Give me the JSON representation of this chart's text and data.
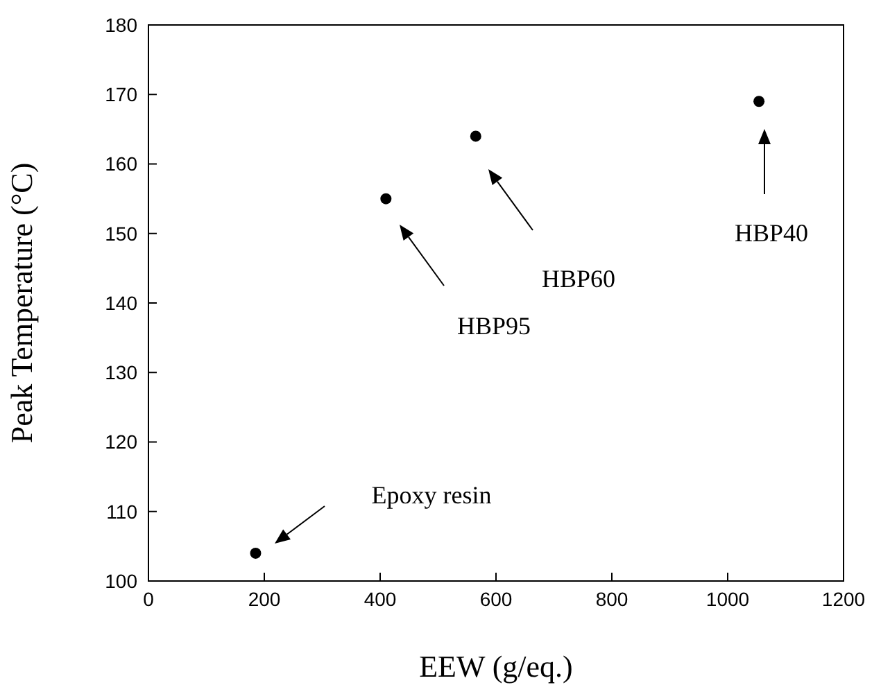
{
  "chart_data": {
    "type": "scatter",
    "xlabel": "EEW (g/eq.)",
    "ylabel": "Peak Temperature (°C)",
    "x": [
      185,
      410,
      565,
      1054
    ],
    "series": [
      {
        "color": "#000000",
        "values": [
          104,
          155,
          164,
          169
        ]
      }
    ],
    "xlim": [
      0,
      1200
    ],
    "xticks": [
      0,
      200,
      400,
      600,
      800,
      1000,
      1200
    ],
    "ylim": [
      100,
      180
    ],
    "yticks": [
      100,
      110,
      120,
      130,
      140,
      150,
      160,
      170,
      180
    ],
    "marker": "circle",
    "annotations": [
      "Epoxy resin",
      "HBP95",
      "HBP60",
      "HBP40"
    ]
  }
}
